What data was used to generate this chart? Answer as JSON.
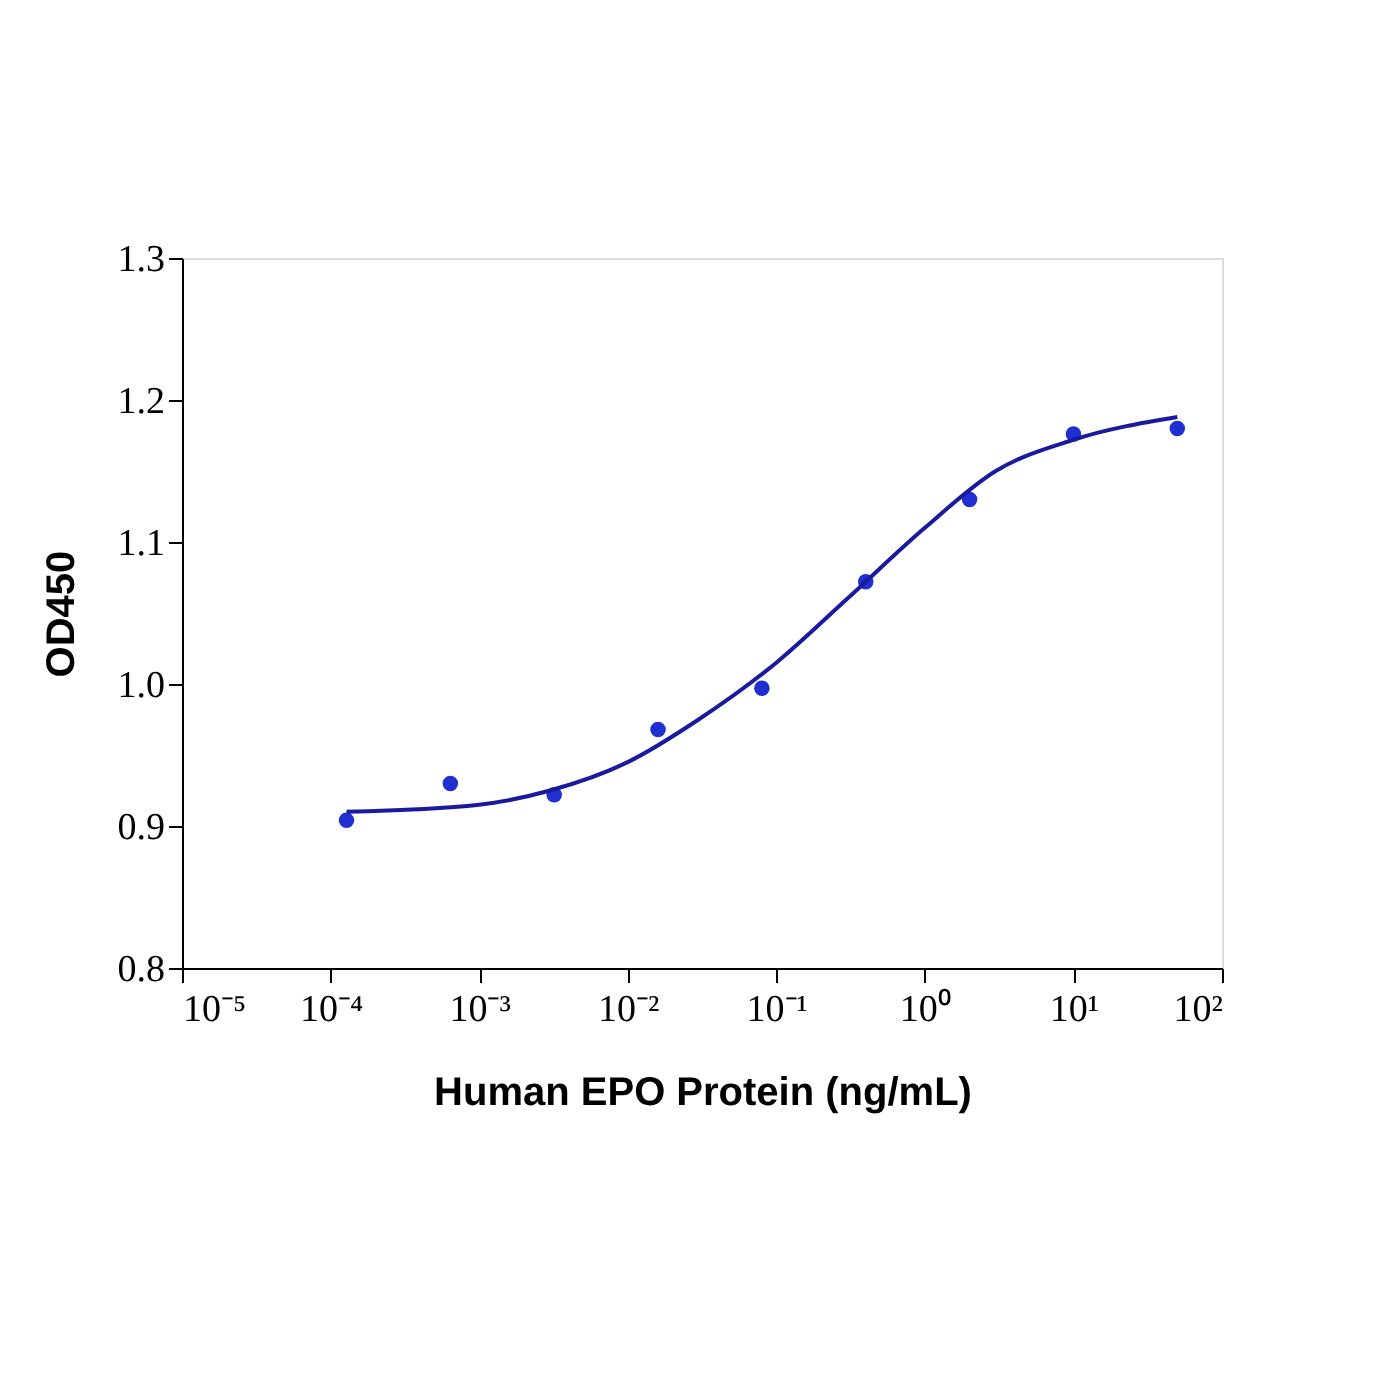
{
  "chart_data": {
    "type": "scatter",
    "xlabel": "Human EPO Protein (ng/mL)",
    "ylabel": "OD450",
    "log": "x",
    "grid": false,
    "marker": "circle",
    "xlim": [
      1e-05,
      100
    ],
    "ylim": [
      0.8,
      1.3
    ],
    "xticks": [
      {
        "value": 1e-05,
        "label": "10⁻⁵"
      },
      {
        "value": 0.0001,
        "label": "10⁻⁴"
      },
      {
        "value": 0.001,
        "label": "10⁻³"
      },
      {
        "value": 0.01,
        "label": "10⁻²"
      },
      {
        "value": 0.1,
        "label": "10⁻¹"
      },
      {
        "value": 1,
        "label": "10⁰"
      },
      {
        "value": 10,
        "label": "10¹"
      },
      {
        "value": 100,
        "label": "10²"
      }
    ],
    "yticks": [
      {
        "value": 0.8,
        "label": "0.8"
      },
      {
        "value": 0.9,
        "label": "0.9"
      },
      {
        "value": 1.0,
        "label": "1.0"
      },
      {
        "value": 1.1,
        "label": "1.1"
      },
      {
        "value": 1.2,
        "label": "1.2"
      },
      {
        "value": 1.3,
        "label": "1.3"
      }
    ],
    "series": [
      {
        "color": "#1f2fd0",
        "x": [
          0.000128,
          0.00064,
          0.0032,
          0.016,
          0.08,
          0.4,
          2,
          10,
          50
        ],
        "values": [
          0.904,
          0.93,
          0.922,
          0.968,
          0.997,
          1.072,
          1.13,
          1.176,
          1.18
        ]
      },
      {
        "type": "line",
        "marker": "none",
        "line_style": "solid",
        "color": "#1a1a9e",
        "x": [
          0.000128,
          0.001,
          0.003,
          0.01,
          0.03,
          0.1,
          0.3,
          1,
          3,
          10,
          50
        ],
        "values": [
          0.91,
          0.915,
          0.925,
          0.945,
          0.975,
          1.015,
          1.06,
          1.11,
          1.15,
          1.172,
          1.188
        ]
      }
    ]
  }
}
